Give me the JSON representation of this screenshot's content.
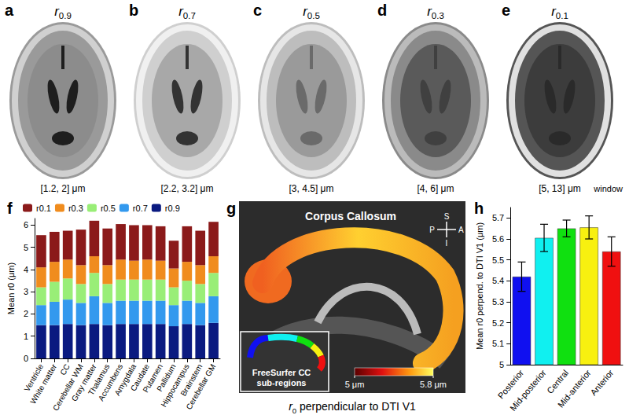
{
  "panels": [
    {
      "label": "a",
      "title": "r0.9",
      "window": "[1.2, 2] μm"
    },
    {
      "label": "b",
      "title": "r0.7",
      "window": "[2.2, 3.2] μm"
    },
    {
      "label": "c",
      "title": "r0.5",
      "window": "[3, 4.5] μm"
    },
    {
      "label": "d",
      "title": "r0.3",
      "window": "[4, 6] μm"
    },
    {
      "label": "e",
      "title": "r0.1",
      "window": "[5, 13] μm",
      "window_note": "window"
    }
  ],
  "corpus_callosum": {
    "label": "g",
    "title": "Corpus Callosum",
    "orientation": {
      "superior": "S",
      "anterior": "A",
      "posterior": "P",
      "inferior": "I"
    },
    "inset": [
      "FreeSurfer CC",
      "sub-regions"
    ],
    "caption": "r0 perpendicular to DTI V1",
    "colorbar": {
      "range": [
        5,
        5.8
      ],
      "ticks": [
        {
          "value": 5,
          "label": "5 μm"
        },
        {
          "value": 5.8,
          "label": "5.8 μm"
        }
      ]
    }
  },
  "chart_data": [
    {
      "type": "bar",
      "stacked": true,
      "annotations": [
        "f"
      ],
      "ylabel": "Mean r0 (μm)",
      "categories": [
        "Ventricle",
        "White matter",
        "CC",
        "Cerebellar WM",
        "Gray matter",
        "Thalamus",
        "Accumbens",
        "Amygdala",
        "Caudate",
        "Putamen",
        "Pallidum",
        "Hippocampus",
        "Brainstem",
        "Cerebellar GM"
      ],
      "series": [
        {
          "name": "r0.9",
          "color": "#0a1a80",
          "values": [
            1.5,
            1.5,
            1.55,
            1.5,
            1.55,
            1.5,
            1.55,
            1.55,
            1.55,
            1.55,
            1.45,
            1.55,
            1.5,
            1.6
          ]
        },
        {
          "name": "r0.7",
          "color": "#3399ee",
          "values": [
            0.9,
            1.05,
            1.1,
            1.0,
            1.25,
            1.0,
            1.05,
            1.05,
            1.05,
            1.05,
            0.95,
            1.05,
            1.0,
            1.2
          ]
        },
        {
          "name": "r0.5",
          "color": "#99ee77",
          "values": [
            0.8,
            0.9,
            0.95,
            0.85,
            1.05,
            0.85,
            0.95,
            0.95,
            0.95,
            0.95,
            0.8,
            0.9,
            0.85,
            1.05
          ]
        },
        {
          "name": "r0.3",
          "color": "#f08c1e",
          "values": [
            0.9,
            0.9,
            0.85,
            0.85,
            0.75,
            0.85,
            0.9,
            0.85,
            0.9,
            0.85,
            0.85,
            0.85,
            0.85,
            0.75
          ]
        },
        {
          "name": "r0.1",
          "color": "#8b1a1a",
          "values": [
            1.45,
            1.35,
            1.3,
            1.6,
            1.6,
            1.65,
            1.6,
            1.6,
            1.55,
            1.55,
            1.25,
            1.6,
            1.55,
            1.55
          ]
        }
      ],
      "ylim": [
        0,
        6.3
      ],
      "yticks": [
        0,
        1,
        2,
        3,
        4,
        5,
        6
      ],
      "legend": "top"
    },
    {
      "type": "bar",
      "annotations": [
        "h"
      ],
      "ylabel": "Mean r0 perpend. to DTI V1 (μm)",
      "categories": [
        "Posterior",
        "Mid-posterior",
        "Central",
        "Mid-anterior",
        "Anterior"
      ],
      "values": [
        5.42,
        5.605,
        5.65,
        5.655,
        5.54
      ],
      "errors": [
        0.07,
        0.065,
        0.04,
        0.055,
        0.07
      ],
      "colors": [
        "#1010f0",
        "#10f0f0",
        "#10e010",
        "#f8f010",
        "#f01010"
      ],
      "ylim": [
        5,
        5.75
      ],
      "yticks": [
        5,
        5.1,
        5.2,
        5.3,
        5.4,
        5.5,
        5.6,
        5.7
      ]
    }
  ]
}
